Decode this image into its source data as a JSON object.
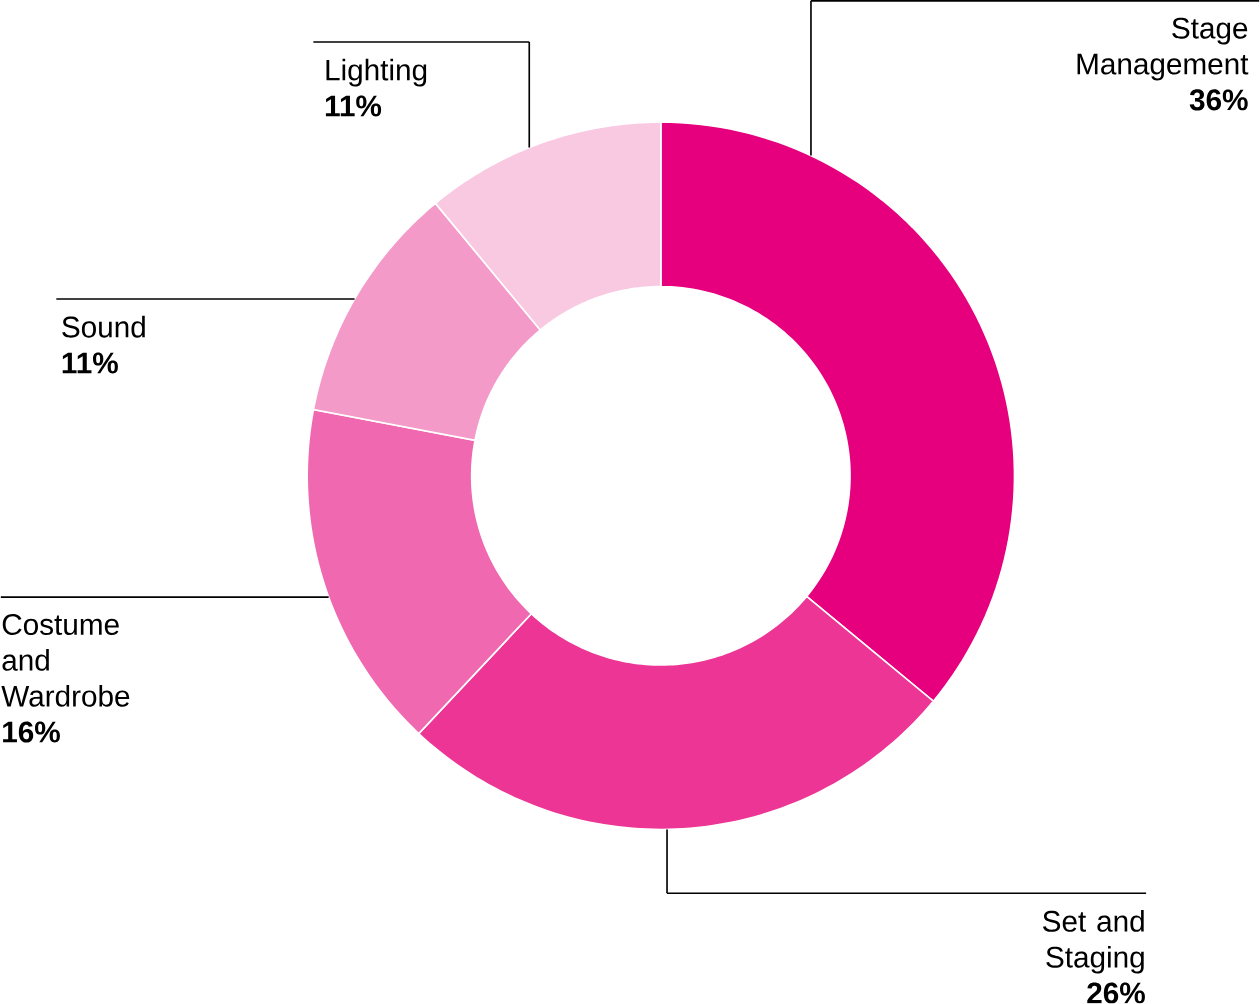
{
  "chart_data": {
    "type": "donut",
    "categories": [
      "Stage Management",
      "Set and Staging",
      "Costume and Wardrobe",
      "Sound",
      "Lighting"
    ],
    "values": [
      36,
      26,
      16,
      11,
      11
    ],
    "value_labels": [
      "36%",
      "26%",
      "16%",
      "11%",
      "11%"
    ],
    "colors": [
      "#e6007e",
      "#ec3594",
      "#f068b0",
      "#f49ac8",
      "#f9c9e2"
    ]
  }
}
